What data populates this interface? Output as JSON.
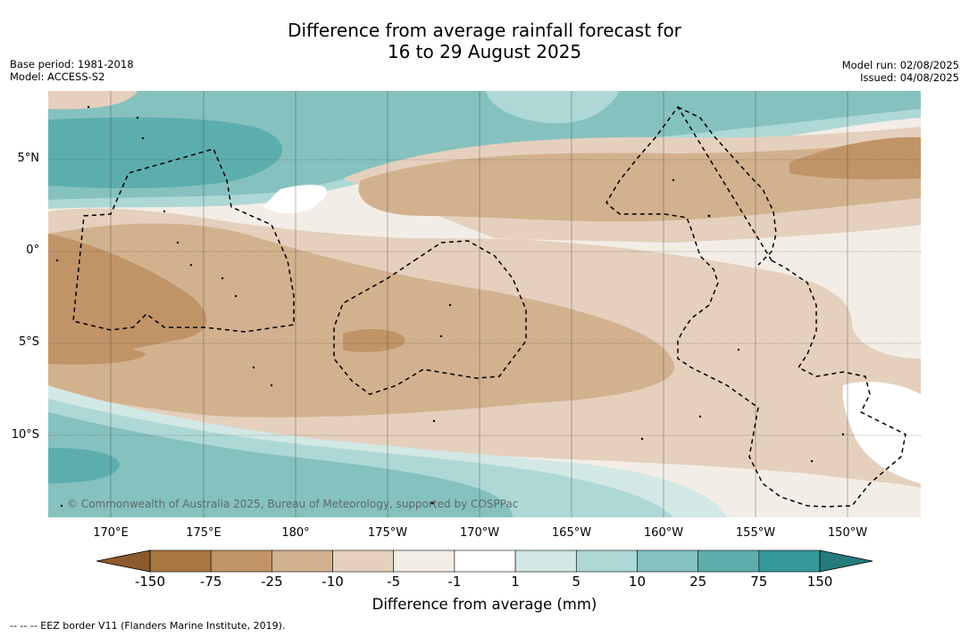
{
  "header": {
    "title_line1": "Difference from average rainfall forecast for",
    "title_line2": "16 to 29 August 2025",
    "base_period": "Base period: 1981-2018",
    "model": "Model: ACCESS-S2",
    "model_run": "Model run: 02/08/2025",
    "issued": "Issued: 04/08/2025"
  },
  "map": {
    "lat_labels": [
      "5°N",
      "0°",
      "5°S",
      "10°S"
    ],
    "lon_labels": [
      "170°E",
      "175°E",
      "180°",
      "175°W",
      "170°W",
      "165°W",
      "160°W",
      "155°W",
      "150°W"
    ],
    "copyright": "© Commonwealth of Australia 2025, Bureau of Meteorology, supported by COSPPac",
    "colors": {
      "dry_strong": "#a97541",
      "dry_75": "#c19468",
      "dry_25": "#d2b18e",
      "dry_10": "#e4d0bd",
      "dry_5": "#f3ede7",
      "neutral": "#ffffff",
      "wet_5": "#d2e8e5",
      "wet_10": "#aed8d6",
      "wet_25": "#85c1bf",
      "wet_75": "#5caeac",
      "wet_strong": "#35999a"
    }
  },
  "colorbar": {
    "ticks": [
      "-150",
      "-75",
      "-25",
      "-10",
      "-5",
      "-1",
      "1",
      "5",
      "10",
      "25",
      "75",
      "150"
    ],
    "title": "Difference from average (mm)",
    "colors": [
      "#a97541",
      "#c19468",
      "#d2b18e",
      "#e4d0bd",
      "#f3ede7",
      "#ffffff",
      "#d2e8e5",
      "#aed8d6",
      "#85c1bf",
      "#5caeac",
      "#35999a"
    ],
    "extend_low_color": "#8c5a2d",
    "extend_high_color": "#257a7b"
  },
  "footer": {
    "eez_note": "--  --  -- EEZ border V11 (Flanders Marine Institute, 2019)."
  }
}
